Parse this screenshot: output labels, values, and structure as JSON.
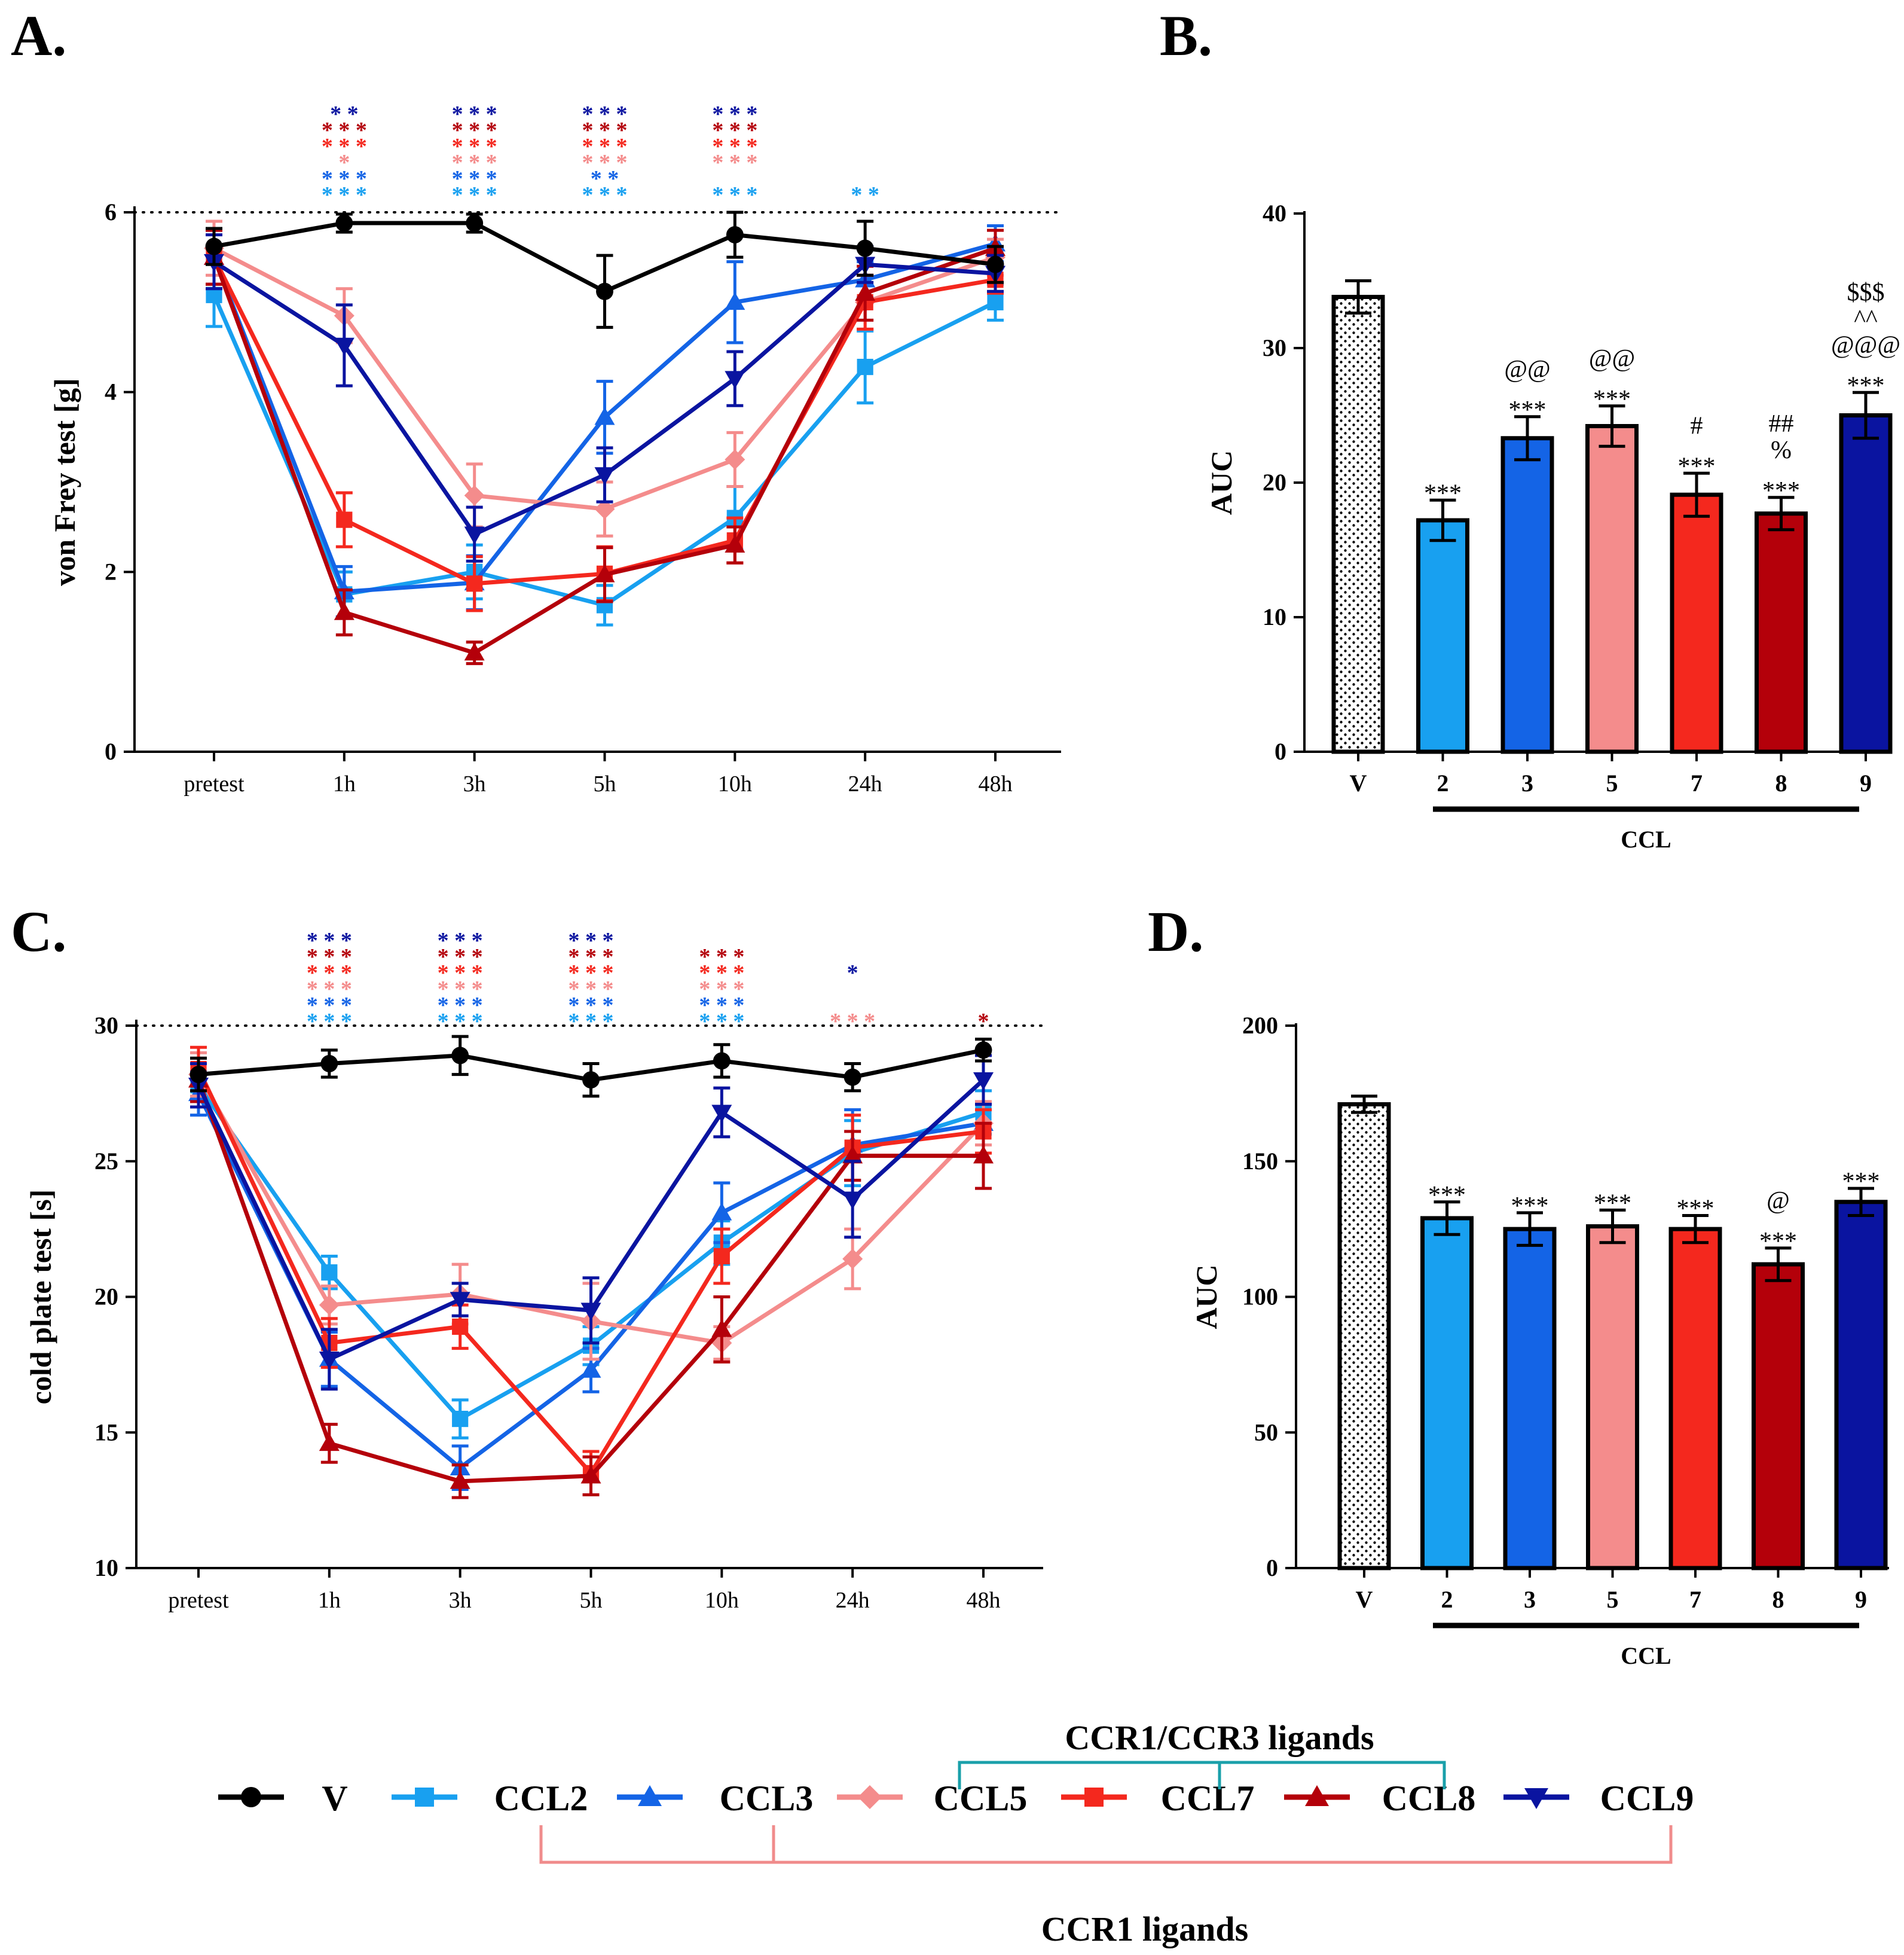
{
  "colors": {
    "V": "#000000",
    "CCL2": "#18a0f0",
    "CCL3": "#1464e6",
    "CCL5": "#f48c8c",
    "CCL7": "#f4281e",
    "CCL8": "#b4000a",
    "CCL9": "#0a14a0",
    "ccr13_bracket": "#1aa0aa",
    "ccr1_bracket": "#f08c8c"
  },
  "panels": {
    "A": {
      "letter": "A."
    },
    "B": {
      "letter": "B."
    },
    "C": {
      "letter": "C."
    },
    "D": {
      "letter": "D."
    }
  },
  "legend": {
    "series": [
      {
        "key": "V",
        "label": "V",
        "marker": "circle"
      },
      {
        "key": "CCL2",
        "label": "CCL2",
        "marker": "square"
      },
      {
        "key": "CCL3",
        "label": "CCL3",
        "marker": "triangle-up"
      },
      {
        "key": "CCL5",
        "label": "CCL5",
        "marker": "diamond"
      },
      {
        "key": "CCL7",
        "label": "CCL7",
        "marker": "square"
      },
      {
        "key": "CCL8",
        "label": "CCL8",
        "marker": "triangle-up"
      },
      {
        "key": "CCL9",
        "label": "CCL9",
        "marker": "triangle-down"
      }
    ],
    "ccr13_label": "CCR1/CCR3 ligands",
    "ccr1_label": "CCR1 ligands"
  },
  "chart_data": [
    {
      "id": "A",
      "type": "line",
      "title": "",
      "xlabel": "",
      "ylabel": "von Frey test [g]",
      "categories": [
        "pretest",
        "1h",
        "3h",
        "5h",
        "10h",
        "24h",
        "48h"
      ],
      "ylim": [
        0,
        6
      ],
      "yticks": [
        "0",
        "2",
        "4",
        "6"
      ],
      "reference_line": 6,
      "series": [
        {
          "name": "CCL2",
          "marker": "square",
          "values": [
            5.08,
            1.75,
            2.0,
            1.63,
            2.6,
            4.28,
            5.0
          ],
          "errors": [
            0.35,
            0.25,
            0.3,
            0.22,
            0.35,
            0.4,
            0.2
          ]
        },
        {
          "name": "CCL3",
          "marker": "triangle-up",
          "values": [
            5.5,
            1.78,
            1.88,
            3.72,
            5.0,
            5.25,
            5.65
          ],
          "errors": [
            0.3,
            0.28,
            0.3,
            0.4,
            0.45,
            0.2,
            0.2
          ]
        },
        {
          "name": "CCL5",
          "marker": "diamond",
          "values": [
            5.6,
            4.85,
            2.85,
            2.7,
            3.25,
            5.0,
            5.5
          ],
          "errors": [
            0.3,
            0.3,
            0.35,
            0.3,
            0.3,
            0.3,
            0.2
          ]
        },
        {
          "name": "CCL7",
          "marker": "square",
          "values": [
            5.5,
            2.58,
            1.87,
            1.98,
            2.35,
            5.0,
            5.25
          ],
          "errors": [
            0.3,
            0.3,
            0.3,
            0.3,
            0.25,
            0.3,
            0.15
          ]
        },
        {
          "name": "CCL8",
          "marker": "triangle-up",
          "values": [
            5.5,
            1.55,
            1.1,
            1.97,
            2.3,
            5.1,
            5.6
          ],
          "errors": [
            0.3,
            0.25,
            0.12,
            0.3,
            0.2,
            0.3,
            0.2
          ]
        },
        {
          "name": "CCL9",
          "marker": "triangle-down",
          "values": [
            5.45,
            4.52,
            2.42,
            3.08,
            4.15,
            5.42,
            5.32
          ],
          "errors": [
            0.3,
            0.45,
            0.3,
            0.3,
            0.3,
            0.2,
            0.2
          ]
        },
        {
          "name": "V",
          "marker": "circle",
          "values": [
            5.62,
            5.88,
            5.88,
            5.12,
            5.75,
            5.6,
            5.42
          ],
          "errors": [
            0.2,
            0.1,
            0.1,
            0.4,
            0.25,
            0.3,
            0.2
          ]
        }
      ],
      "significance": [
        {
          "x": "1h",
          "marks": [
            {
              "text": "**",
              "series": "CCL9"
            },
            {
              "text": "***",
              "series": "CCL8"
            },
            {
              "text": "***",
              "series": "CCL7"
            },
            {
              "text": "*",
              "series": "CCL5"
            },
            {
              "text": "***",
              "series": "CCL3"
            },
            {
              "text": "***",
              "series": "CCL2"
            }
          ]
        },
        {
          "x": "3h",
          "marks": [
            {
              "text": "***",
              "series": "CCL9"
            },
            {
              "text": "***",
              "series": "CCL8"
            },
            {
              "text": "***",
              "series": "CCL7"
            },
            {
              "text": "***",
              "series": "CCL5"
            },
            {
              "text": "***",
              "series": "CCL3"
            },
            {
              "text": "***",
              "series": "CCL2"
            }
          ]
        },
        {
          "x": "5h",
          "marks": [
            {
              "text": "***",
              "series": "CCL9"
            },
            {
              "text": "***",
              "series": "CCL8"
            },
            {
              "text": "***",
              "series": "CCL7"
            },
            {
              "text": "***",
              "series": "CCL5"
            },
            {
              "text": "**",
              "series": "CCL3"
            },
            {
              "text": "***",
              "series": "CCL2"
            }
          ]
        },
        {
          "x": "10h",
          "marks": [
            {
              "text": "***",
              "series": "CCL9"
            },
            {
              "text": "***",
              "series": "CCL8"
            },
            {
              "text": "***",
              "series": "CCL7"
            },
            {
              "text": "***",
              "series": "CCL5"
            },
            {
              "text": "",
              "series": "CCL3"
            },
            {
              "text": "***",
              "series": "CCL2"
            }
          ]
        },
        {
          "x": "24h",
          "marks": [
            {
              "text": "**",
              "series": "CCL2"
            }
          ]
        }
      ]
    },
    {
      "id": "B",
      "type": "bar",
      "title": "",
      "xlabel": "CCL",
      "ylabel": "AUC",
      "categories": [
        "V",
        "2",
        "3",
        "5",
        "7",
        "8",
        "9"
      ],
      "series_keys": [
        "V",
        "CCL2",
        "CCL3",
        "CCL5",
        "CCL7",
        "CCL8",
        "CCL9"
      ],
      "values": [
        33.8,
        17.2,
        23.3,
        24.2,
        19.1,
        17.7,
        25.0
      ],
      "errors": [
        1.2,
        1.5,
        1.6,
        1.5,
        1.6,
        1.2,
        1.7
      ],
      "ylim": [
        0,
        40
      ],
      "yticks": [
        "0",
        "10",
        "20",
        "30",
        "40"
      ],
      "annotations": [
        [],
        [
          "***"
        ],
        [
          "***",
          "@@"
        ],
        [
          "***",
          "@@"
        ],
        [
          "***",
          "#"
        ],
        [
          "***",
          "%",
          "##"
        ],
        [
          "***",
          "@@@",
          "^^",
          "$$$"
        ]
      ]
    },
    {
      "id": "C",
      "type": "line",
      "title": "",
      "xlabel": "",
      "ylabel": "cold plate test [s]",
      "categories": [
        "pretest",
        "1h",
        "3h",
        "5h",
        "10h",
        "24h",
        "48h"
      ],
      "ylim": [
        10,
        30
      ],
      "yticks": [
        "10",
        "15",
        "20",
        "25",
        "30"
      ],
      "reference_line": 30,
      "series": [
        {
          "name": "CCL2",
          "marker": "square",
          "values": [
            27.8,
            20.9,
            15.5,
            18.2,
            22.0,
            25.3,
            26.8
          ],
          "errors": [
            0.8,
            0.6,
            0.7,
            0.7,
            0.8,
            1.2,
            0.8
          ]
        },
        {
          "name": "CCL3",
          "marker": "triangle-up",
          "values": [
            27.5,
            17.7,
            13.7,
            17.3,
            23.1,
            25.6,
            26.4
          ],
          "errors": [
            0.8,
            1.0,
            0.8,
            0.8,
            1.1,
            1.3,
            0.8
          ]
        },
        {
          "name": "CCL5",
          "marker": "diamond",
          "values": [
            28.2,
            19.7,
            20.1,
            19.1,
            18.3,
            21.4,
            26.4
          ],
          "errors": [
            0.8,
            0.7,
            1.1,
            1.4,
            0.6,
            1.1,
            0.8
          ]
        },
        {
          "name": "CCL7",
          "marker": "square",
          "values": [
            28.4,
            18.3,
            18.9,
            13.5,
            21.5,
            25.5,
            26.1
          ],
          "errors": [
            0.8,
            0.9,
            0.8,
            0.8,
            1.0,
            1.2,
            0.8
          ]
        },
        {
          "name": "CCL8",
          "marker": "triangle-up",
          "values": [
            28.0,
            14.6,
            13.2,
            13.4,
            18.8,
            25.2,
            25.2
          ],
          "errors": [
            0.8,
            0.7,
            0.6,
            0.7,
            1.2,
            0.9,
            1.2
          ]
        },
        {
          "name": "CCL9",
          "marker": "triangle-down",
          "values": [
            27.8,
            17.7,
            19.9,
            19.5,
            26.8,
            23.6,
            28.0
          ],
          "errors": [
            0.8,
            1.1,
            0.6,
            1.2,
            0.9,
            1.4,
            0.9
          ]
        },
        {
          "name": "V",
          "marker": "circle",
          "values": [
            28.2,
            28.6,
            28.9,
            28.0,
            28.7,
            28.1,
            29.1
          ],
          "errors": [
            0.6,
            0.5,
            0.7,
            0.6,
            0.6,
            0.5,
            0.4
          ]
        }
      ],
      "significance": [
        {
          "x": "1h",
          "marks": [
            {
              "text": "***",
              "series": "CCL9"
            },
            {
              "text": "***",
              "series": "CCL8"
            },
            {
              "text": "***",
              "series": "CCL7"
            },
            {
              "text": "***",
              "series": "CCL5"
            },
            {
              "text": "***",
              "series": "CCL3"
            },
            {
              "text": "***",
              "series": "CCL2"
            }
          ]
        },
        {
          "x": "3h",
          "marks": [
            {
              "text": "***",
              "series": "CCL9"
            },
            {
              "text": "***",
              "series": "CCL8"
            },
            {
              "text": "***",
              "series": "CCL7"
            },
            {
              "text": "***",
              "series": "CCL5"
            },
            {
              "text": "***",
              "series": "CCL3"
            },
            {
              "text": "***",
              "series": "CCL2"
            }
          ]
        },
        {
          "x": "5h",
          "marks": [
            {
              "text": "***",
              "series": "CCL9"
            },
            {
              "text": "***",
              "series": "CCL8"
            },
            {
              "text": "***",
              "series": "CCL7"
            },
            {
              "text": "***",
              "series": "CCL5"
            },
            {
              "text": "***",
              "series": "CCL3"
            },
            {
              "text": "***",
              "series": "CCL2"
            }
          ]
        },
        {
          "x": "10h",
          "marks": [
            {
              "text": "***",
              "series": "CCL8"
            },
            {
              "text": "***",
              "series": "CCL7"
            },
            {
              "text": "***",
              "series": "CCL5"
            },
            {
              "text": "***",
              "series": "CCL3"
            },
            {
              "text": "***",
              "series": "CCL2"
            }
          ]
        },
        {
          "x": "24h",
          "marks": [
            {
              "text": "*",
              "series": "CCL9"
            },
            {
              "text": "",
              "series": "CCL8"
            },
            {
              "text": "",
              "series": "CCL7"
            },
            {
              "text": "***",
              "series": "CCL5"
            }
          ]
        },
        {
          "x": "48h",
          "marks": [
            {
              "text": "*",
              "series": "CCL8"
            }
          ]
        }
      ]
    },
    {
      "id": "D",
      "type": "bar",
      "title": "",
      "xlabel": "CCL",
      "ylabel": "AUC",
      "categories": [
        "V",
        "2",
        "3",
        "5",
        "7",
        "8",
        "9"
      ],
      "series_keys": [
        "V",
        "CCL2",
        "CCL3",
        "CCL5",
        "CCL7",
        "CCL8",
        "CCL9"
      ],
      "values": [
        171,
        129,
        125,
        126,
        125,
        112,
        135
      ],
      "errors": [
        3,
        6,
        6,
        6,
        5,
        6,
        5
      ],
      "ylim": [
        0,
        200
      ],
      "yticks": [
        "0",
        "50",
        "100",
        "150",
        "200"
      ],
      "annotations": [
        [],
        [
          "***"
        ],
        [
          "***"
        ],
        [
          "***"
        ],
        [
          "***"
        ],
        [
          "***",
          "@"
        ],
        [
          "***"
        ]
      ]
    }
  ]
}
